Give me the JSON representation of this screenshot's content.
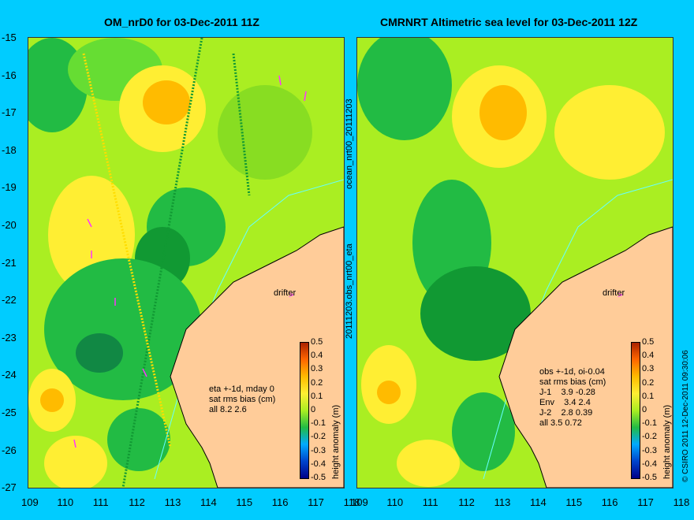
{
  "left_panel": {
    "title": "OM_nrD0 for 03-Dec-2011 11Z",
    "stats": [
      "eta +-1d, mday 0",
      "sat rms bias (cm)",
      "all 8.2 2.6"
    ],
    "drifter_label": "drifter",
    "vertical_label": "20111203.obs_nrt00_eta"
  },
  "right_panel": {
    "title": "CMRNRT Altimetric sea level  for 03-Dec-2011 12Z",
    "stats": [
      "obs +-1d, oi-0.04",
      "sat rms bias (cm)",
      "J-1    3.9 -0.28",
      "Env    3.4 2.4",
      "J-2    2.8 0.39",
      "all 3.5 0.72"
    ],
    "drifter_label": "drifter",
    "vertical_label": "ocean_nrt00_20111203"
  },
  "axes": {
    "y_ticks": [
      "-15",
      "-16",
      "-17",
      "-18",
      "-19",
      "-20",
      "-21",
      "-22",
      "-23",
      "-24",
      "-25",
      "-26",
      "-27"
    ],
    "x_ticks": [
      "109",
      "110",
      "111",
      "112",
      "113",
      "114",
      "115",
      "116",
      "117",
      "118"
    ]
  },
  "colorbar": {
    "label": "height anomaly (m)",
    "ticks": [
      "0.5",
      "0.4",
      "0.3",
      "0.2",
      "0.1",
      "0",
      "-0.1",
      "-0.2",
      "-0.3",
      "-0.4",
      "-0.5"
    ]
  },
  "copyright": "© CSIRO 2011   12-Dec-2011 09:30:06",
  "colors": {
    "background": "#00ccff",
    "land": "#ffcc99",
    "sea_mid": "#aaee22",
    "sea_low": "#22bb44",
    "sea_high": "#ffdd00",
    "drifter": "#ff33ff",
    "track": "#66ffff"
  }
}
